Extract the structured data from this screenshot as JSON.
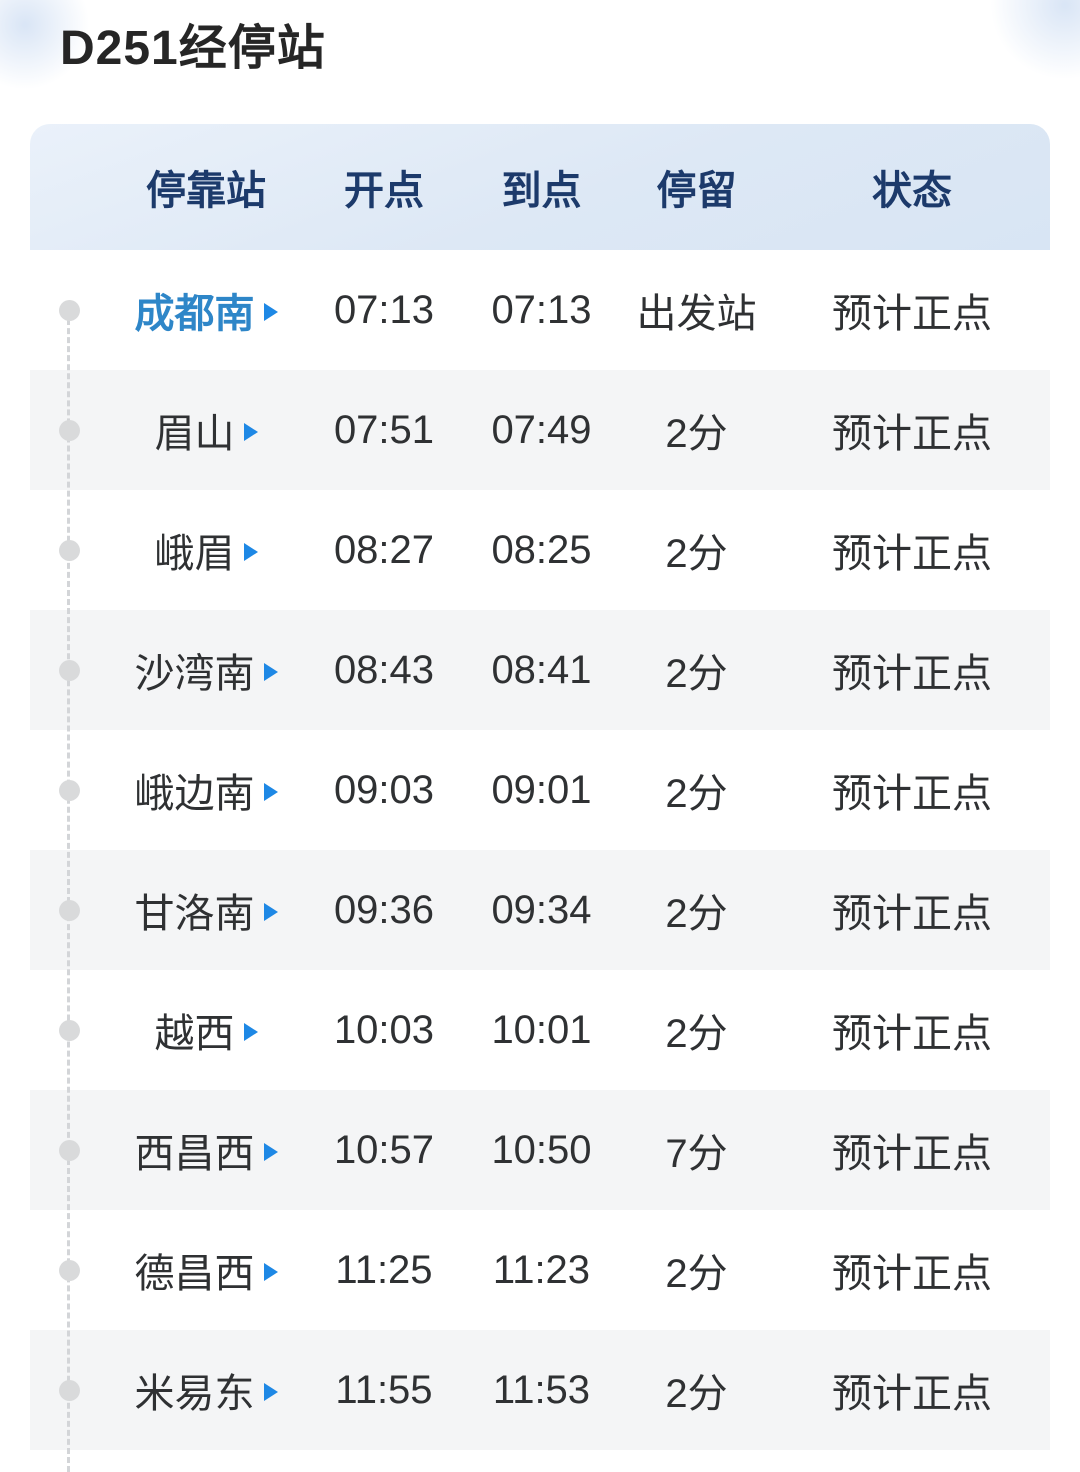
{
  "page": {
    "title": "D251经停站"
  },
  "table": {
    "headers": {
      "station": "停靠站",
      "depart": "开点",
      "arrive": "到点",
      "stop": "停留",
      "status": "状态"
    },
    "rows": [
      {
        "station": "成都南",
        "depart": "07:13",
        "arrive": "07:13",
        "stop": "出发站",
        "status": "预计正点"
      },
      {
        "station": "眉山",
        "depart": "07:51",
        "arrive": "07:49",
        "stop": "2分",
        "status": "预计正点"
      },
      {
        "station": "峨眉",
        "depart": "08:27",
        "arrive": "08:25",
        "stop": "2分",
        "status": "预计正点"
      },
      {
        "station": "沙湾南",
        "depart": "08:43",
        "arrive": "08:41",
        "stop": "2分",
        "status": "预计正点"
      },
      {
        "station": "峨边南",
        "depart": "09:03",
        "arrive": "09:01",
        "stop": "2分",
        "status": "预计正点"
      },
      {
        "station": "甘洛南",
        "depart": "09:36",
        "arrive": "09:34",
        "stop": "2分",
        "status": "预计正点"
      },
      {
        "station": "越西",
        "depart": "10:03",
        "arrive": "10:01",
        "stop": "2分",
        "status": "预计正点"
      },
      {
        "station": "西昌西",
        "depart": "10:57",
        "arrive": "10:50",
        "stop": "7分",
        "status": "预计正点"
      },
      {
        "station": "德昌西",
        "depart": "11:25",
        "arrive": "11:23",
        "stop": "2分",
        "status": "预计正点"
      },
      {
        "station": "米易东",
        "depart": "11:55",
        "arrive": "11:53",
        "stop": "2分",
        "status": "预计正点"
      }
    ]
  },
  "colors": {
    "header_bg": "#dde8f5",
    "header_text": "#1c3a6b",
    "highlight_station": "#2e86c8",
    "arrow": "#1e88e5",
    "stripe": "#f4f5f6",
    "body_text": "#2f3133"
  }
}
